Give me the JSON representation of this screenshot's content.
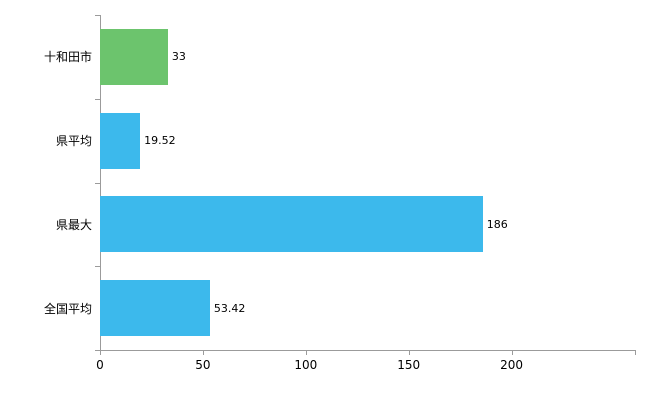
{
  "chart_data": {
    "type": "bar",
    "orientation": "horizontal",
    "title": "",
    "xlabel": "",
    "ylabel": "",
    "categories": [
      "十和田市",
      "県平均",
      "県最大",
      "全国平均"
    ],
    "values": [
      33,
      19.52,
      186,
      53.42
    ],
    "value_labels": [
      "33",
      "19.52",
      "186",
      "53.42"
    ],
    "bar_colors": [
      "#6cc46d",
      "#3cb9ec",
      "#3cb9ec",
      "#3cb9ec"
    ],
    "xlim": [
      0,
      260
    ],
    "xticks": [
      0,
      50,
      100,
      150,
      200
    ],
    "grid": false,
    "legend": false,
    "axis_color": "#9b9b9b",
    "text_color": "#000000",
    "background": "#ffffff"
  }
}
